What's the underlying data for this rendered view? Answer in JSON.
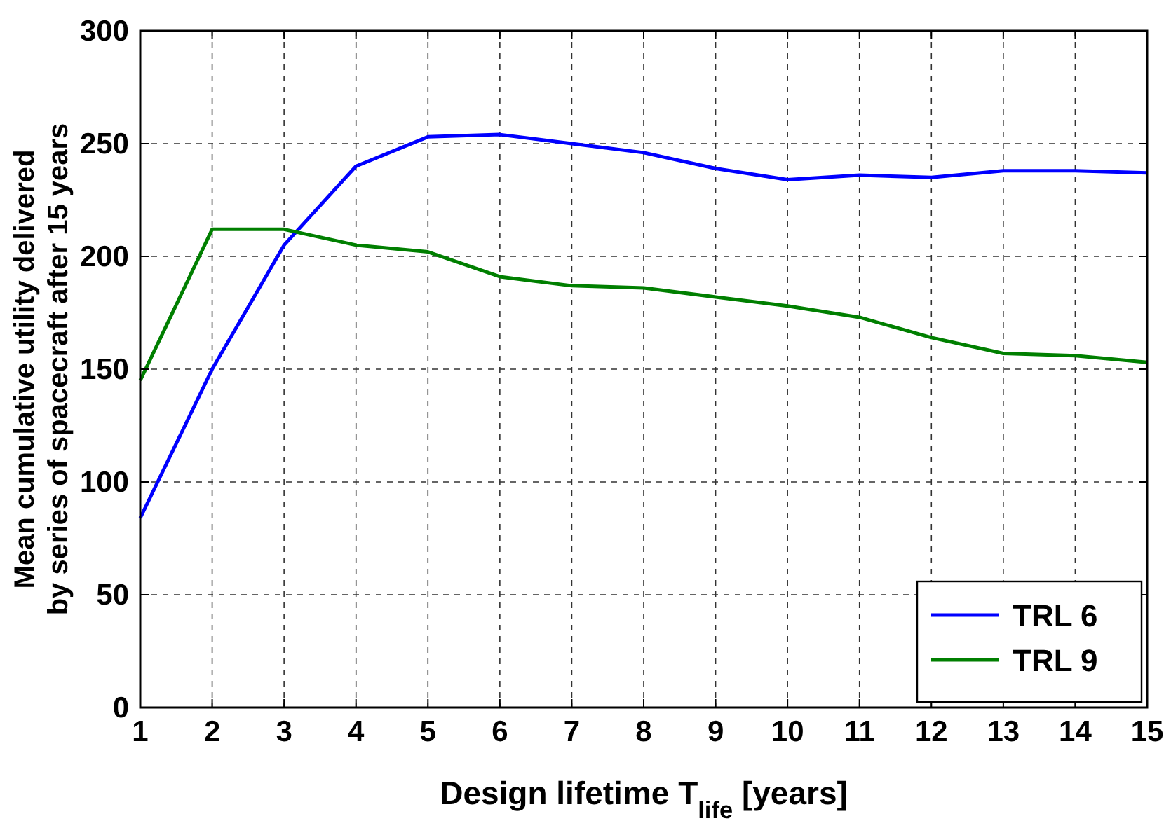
{
  "chart_data": {
    "type": "line",
    "xlabel": "Design lifetime T$_{life}$ [years]",
    "ylabel": "Mean cumulative utility delivered\nby series of spacecraft after 15 years",
    "x": [
      1,
      2,
      3,
      4,
      5,
      6,
      7,
      8,
      9,
      10,
      11,
      12,
      13,
      14,
      15
    ],
    "series": [
      {
        "name": "TRL 6",
        "color": "#0000ff",
        "values": [
          84,
          150,
          205,
          240,
          253,
          254,
          250,
          246,
          239,
          234,
          236,
          235,
          238,
          238,
          237
        ]
      },
      {
        "name": "TRL 9",
        "color": "#007f00",
        "values": [
          145,
          212,
          212,
          205,
          202,
          191,
          187,
          186,
          182,
          178,
          173,
          164,
          157,
          156,
          153
        ]
      }
    ],
    "xlim": [
      1,
      15
    ],
    "xticks": [
      1,
      2,
      3,
      4,
      5,
      6,
      7,
      8,
      9,
      10,
      11,
      12,
      13,
      14,
      15
    ],
    "ylim": [
      0,
      300
    ],
    "yticks": [
      0,
      50,
      100,
      150,
      200,
      250,
      300
    ],
    "grid": true,
    "legend": "bottom right",
    "marker": "none",
    "line_style": "solid"
  }
}
